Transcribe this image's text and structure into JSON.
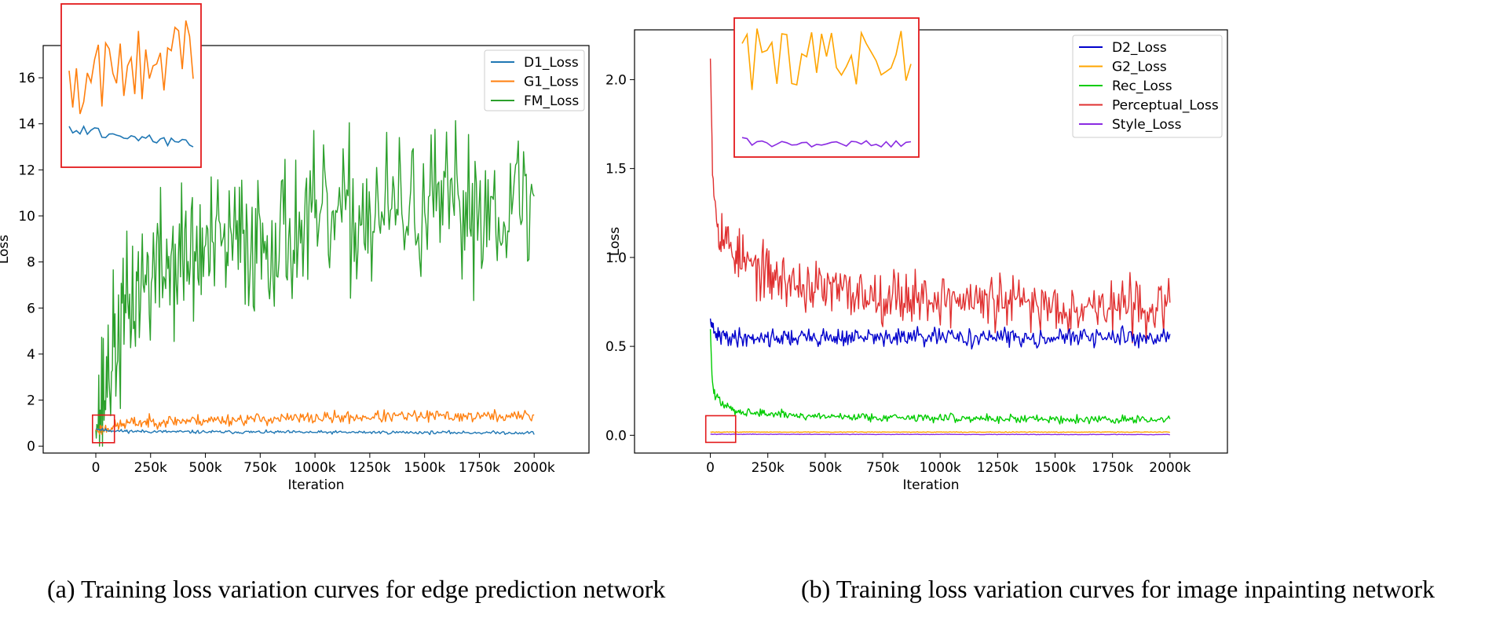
{
  "charts": [
    {
      "type": "line",
      "title": "",
      "xlabel": "Iteration",
      "ylabel": "Loss",
      "xlim": [
        -240000,
        2250000
      ],
      "ylim": [
        -0.3,
        17.4
      ],
      "xticks": [
        0,
        250000,
        500000,
        750000,
        1000000,
        1250000,
        1500000,
        1750000,
        2000000
      ],
      "xtick_labels": [
        "0",
        "250k",
        "500k",
        "750k",
        "1000k",
        "1250k",
        "1500k",
        "1750k",
        "2000k"
      ],
      "yticks": [
        0,
        2,
        4,
        6,
        8,
        10,
        12,
        14,
        16
      ],
      "ytick_labels": [
        "0",
        "2",
        "4",
        "6",
        "8",
        "10",
        "12",
        "14",
        "16"
      ],
      "legend": "top-right",
      "series": [
        {
          "name": "D1_Loss",
          "color": "#1f77b4",
          "points": [
            [
              0,
              0.75
            ],
            [
              20000,
              0.72
            ],
            [
              40000,
              0.7
            ],
            [
              60000,
              0.68
            ],
            [
              100000,
              0.66
            ],
            [
              200000,
              0.64
            ],
            [
              400000,
              0.62
            ],
            [
              700000,
              0.61
            ],
            [
              1000000,
              0.6
            ],
            [
              1300000,
              0.6
            ],
            [
              1600000,
              0.59
            ],
            [
              2000000,
              0.58
            ]
          ],
          "noise": 0.035,
          "seed": 11
        },
        {
          "name": "G1_Loss",
          "color": "#ff7f0e",
          "points": [
            [
              0,
              0.7
            ],
            [
              40000,
              0.75
            ],
            [
              80000,
              0.85
            ],
            [
              150000,
              1.0
            ],
            [
              300000,
              1.08
            ],
            [
              600000,
              1.15
            ],
            [
              1000000,
              1.22
            ],
            [
              1300000,
              1.28
            ],
            [
              1600000,
              1.3
            ],
            [
              2000000,
              1.3
            ]
          ],
          "noise": 0.13,
          "seed": 23
        },
        {
          "name": "FM_Loss",
          "color": "#2ca02c",
          "points": [
            [
              0,
              1.0
            ],
            [
              30000,
              2.0
            ],
            [
              60000,
              3.5
            ],
            [
              100000,
              4.6
            ],
            [
              150000,
              6.0
            ],
            [
              200000,
              7.0
            ],
            [
              300000,
              7.8
            ],
            [
              450000,
              8.3
            ],
            [
              600000,
              8.7
            ],
            [
              800000,
              9.1
            ],
            [
              1000000,
              9.6
            ],
            [
              1200000,
              10.0
            ],
            [
              1400000,
              10.2
            ],
            [
              1600000,
              10.3
            ],
            [
              1800000,
              10.5
            ],
            [
              2000000,
              10.6
            ]
          ],
          "noise": 1.6,
          "seed": 37
        }
      ],
      "annotations": [
        {
          "type": "zoom-box",
          "x_range": [
            -15000,
            85000
          ],
          "y_range": [
            0.15,
            1.35
          ]
        }
      ]
    },
    {
      "type": "line",
      "title": "",
      "xlabel": "Iteration",
      "ylabel": "Loss",
      "xlim": [
        -330000,
        2250000
      ],
      "ylim": [
        -0.1,
        2.28
      ],
      "xticks": [
        0,
        250000,
        500000,
        750000,
        1000000,
        1250000,
        1500000,
        1750000,
        2000000
      ],
      "xtick_labels": [
        "0",
        "250k",
        "500k",
        "750k",
        "1000k",
        "1250k",
        "1500k",
        "1750k",
        "2000k"
      ],
      "yticks": [
        0.0,
        0.5,
        1.0,
        1.5,
        2.0
      ],
      "ytick_labels": [
        "0.0",
        "0.5",
        "1.0",
        "1.5",
        "2.0"
      ],
      "legend": "top-right",
      "series": [
        {
          "name": "D2_Loss",
          "color": "#0000cc",
          "points": [
            [
              0,
              0.65
            ],
            [
              10000,
              0.58
            ],
            [
              30000,
              0.56
            ],
            [
              100000,
              0.55
            ],
            [
              500000,
              0.55
            ],
            [
              1000000,
              0.55
            ],
            [
              1500000,
              0.55
            ],
            [
              2000000,
              0.55
            ]
          ],
          "noise": 0.025,
          "seed": 41
        },
        {
          "name": "G2_Loss",
          "color": "#ffa500",
          "points": [
            [
              0,
              0.018
            ],
            [
              2000000,
              0.018
            ]
          ],
          "noise": 0.001,
          "seed": 43
        },
        {
          "name": "Rec_Loss",
          "color": "#00cc00",
          "points": [
            [
              0,
              0.6
            ],
            [
              8000,
              0.3
            ],
            [
              20000,
              0.22
            ],
            [
              60000,
              0.17
            ],
            [
              100000,
              0.14
            ],
            [
              200000,
              0.125
            ],
            [
              400000,
              0.11
            ],
            [
              800000,
              0.1
            ],
            [
              1200000,
              0.095
            ],
            [
              1600000,
              0.09
            ],
            [
              2000000,
              0.085
            ]
          ],
          "noise": 0.012,
          "seed": 47
        },
        {
          "name": "Perceptual_Loss",
          "color": "#e03030",
          "points": [
            [
              0,
              2.15
            ],
            [
              8000,
              1.6
            ],
            [
              20000,
              1.3
            ],
            [
              40000,
              1.17
            ],
            [
              80000,
              1.07
            ],
            [
              150000,
              0.97
            ],
            [
              250000,
              0.9
            ],
            [
              400000,
              0.84
            ],
            [
              600000,
              0.8
            ],
            [
              900000,
              0.78
            ],
            [
              1200000,
              0.75
            ],
            [
              1500000,
              0.73
            ],
            [
              2000000,
              0.72
            ]
          ],
          "noise": 0.075,
          "seed": 53
        },
        {
          "name": "Style_Loss",
          "color": "#8a2be2",
          "points": [
            [
              0,
              0.006
            ],
            [
              2000000,
              0.004
            ]
          ],
          "noise": 0.0008,
          "seed": 59
        }
      ],
      "annotations": [
        {
          "type": "zoom-box",
          "x_range": [
            -20000,
            110000
          ],
          "y_range": [
            -0.04,
            0.11
          ]
        }
      ]
    }
  ],
  "captions": {
    "a": "(a) Training loss variation curves for edge prediction network",
    "b": "(b) Training loss variation curves for image inpainting network"
  }
}
